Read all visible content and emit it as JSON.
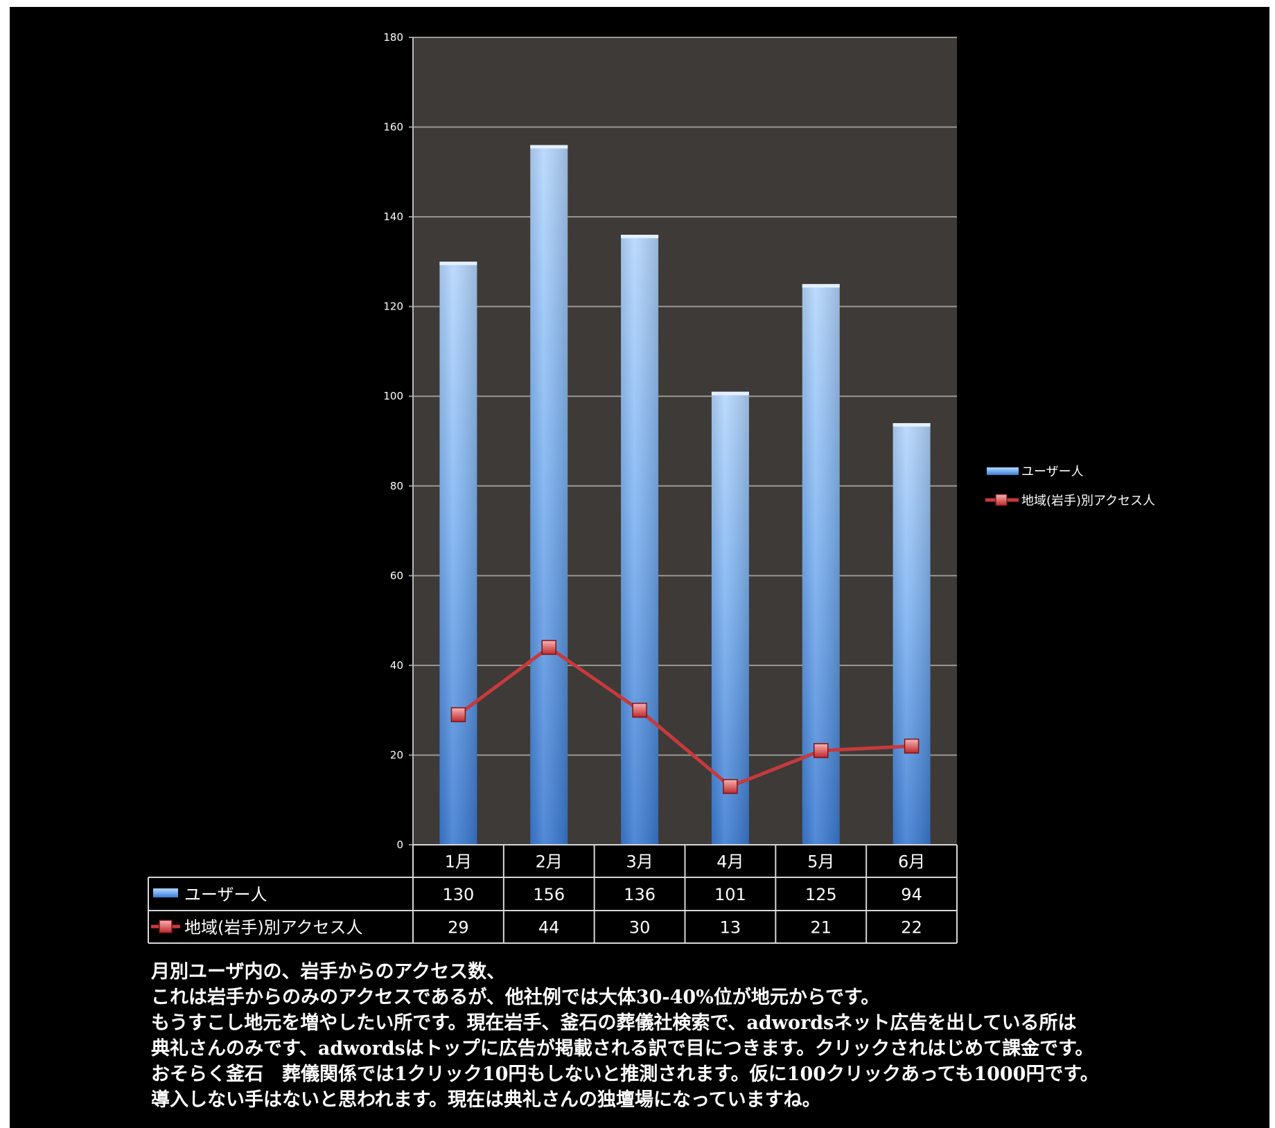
{
  "chart_data": {
    "type": "bar",
    "categories": [
      "1月",
      "2月",
      "3月",
      "4月",
      "5月",
      "6月"
    ],
    "series": [
      {
        "name": "ユーザー人",
        "type": "bar",
        "values": [
          130,
          156,
          136,
          101,
          125,
          94
        ],
        "color": "#6aa6ec"
      },
      {
        "name": "地域(岩手)別アクセス人",
        "type": "line",
        "values": [
          29,
          44,
          30,
          13,
          21,
          22
        ],
        "color": "#c8393c"
      }
    ],
    "ylim": [
      0,
      180
    ],
    "yticks": [
      0,
      20,
      40,
      60,
      80,
      100,
      120,
      140,
      160,
      180
    ],
    "grid": true,
    "legend_position": "right",
    "data_table": true,
    "plot_background": "#3d3a37"
  },
  "caption_lines": [
    "月別ユーザ内の、岩手からのアクセス数、",
    "これは岩手からのみのアクセスであるが、他社例では大体30-40%位が地元からです。",
    "もうすこし地元を増やしたい所です。現在岩手、釜石の葬儀社検索で、adwordsネット広告を出している所は",
    "典礼さんのみです、adwordsはトップに広告が掲載される訳で目につきます。クリックされはじめて課金です。",
    "おそらく釜石　葬儀関係では1クリック10円もしないと推測されます。仮に100クリックあっても1000円です。",
    "導入しない手はないと思われます。現在は典礼さんの独壇場になっていますね。"
  ]
}
